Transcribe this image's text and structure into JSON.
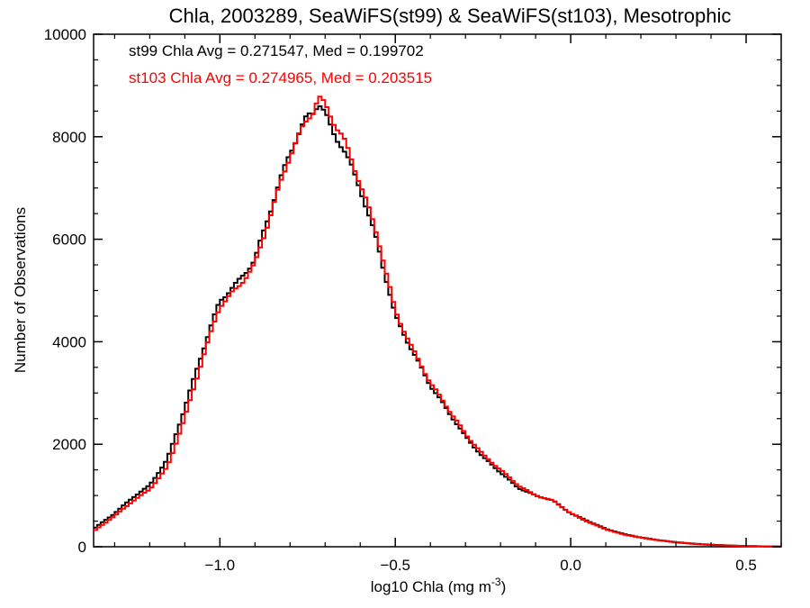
{
  "chart_data": {
    "type": "line",
    "title": "Chla, 2003289, SeaWiFS(st99) & SeaWiFS(st103), Mesotrophic",
    "xlabel": "log10 Chla (mg m",
    "xlabel_sup": "-3",
    "xlabel_tail": ")",
    "ylabel": "Number of Observations",
    "xlim": [
      -1.36,
      0.6
    ],
    "ylim": [
      0,
      10000
    ],
    "x_ticks": [
      -1.0,
      -0.5,
      0.0,
      0.5
    ],
    "x_tick_labels": [
      "−1.0",
      "−0.5",
      "0.0",
      "0.5"
    ],
    "y_ticks": [
      0,
      2000,
      4000,
      6000,
      8000,
      10000
    ],
    "y_tick_labels": [
      "0",
      "2000",
      "4000",
      "6000",
      "8000",
      "10000"
    ],
    "step": true,
    "grid": false,
    "annotations": [
      {
        "text": "st99 Chla Avg = 0.271547, Med = 0.199702",
        "color": "#000000"
      },
      {
        "text": "st103 Chla Avg = 0.274965, Med = 0.203515",
        "color": "#ff0000"
      }
    ],
    "series": [
      {
        "color": "#000000",
        "x": [
          -1.36,
          -1.3,
          -1.25,
          -1.2,
          -1.15,
          -1.1,
          -1.05,
          -1.0,
          -0.95,
          -0.9,
          -0.85,
          -0.8,
          -0.78,
          -0.75,
          -0.73,
          -0.72,
          -0.7,
          -0.68,
          -0.65,
          -0.6,
          -0.55,
          -0.5,
          -0.45,
          -0.4,
          -0.35,
          -0.3,
          -0.25,
          -0.2,
          -0.15,
          -0.1,
          -0.05,
          0.0,
          0.05,
          0.1,
          0.15,
          0.2,
          0.25,
          0.3,
          0.35,
          0.4,
          0.45,
          0.5,
          0.55,
          0.6
        ],
        "y": [
          350,
          650,
          950,
          1200,
          1700,
          2700,
          3800,
          4800,
          5150,
          5600,
          6700,
          7700,
          8000,
          8400,
          8500,
          8700,
          8450,
          8100,
          7800,
          7000,
          5900,
          4500,
          3800,
          3150,
          2650,
          2150,
          1750,
          1450,
          1150,
          1000,
          900,
          650,
          500,
          350,
          250,
          180,
          130,
          90,
          60,
          40,
          25,
          15,
          8,
          5
        ]
      },
      {
        "color": "#ff0000",
        "x": [
          -1.36,
          -1.3,
          -1.25,
          -1.2,
          -1.15,
          -1.1,
          -1.05,
          -1.0,
          -0.95,
          -0.9,
          -0.85,
          -0.8,
          -0.78,
          -0.75,
          -0.73,
          -0.72,
          -0.7,
          -0.68,
          -0.65,
          -0.6,
          -0.55,
          -0.5,
          -0.45,
          -0.4,
          -0.35,
          -0.3,
          -0.25,
          -0.2,
          -0.15,
          -0.1,
          -0.05,
          0.0,
          0.05,
          0.1,
          0.15,
          0.2,
          0.25,
          0.3,
          0.35,
          0.4,
          0.45,
          0.5,
          0.55,
          0.6
        ],
        "y": [
          300,
          600,
          880,
          1120,
          1550,
          2500,
          3650,
          4700,
          5050,
          5500,
          6600,
          7650,
          7950,
          8350,
          8550,
          8800,
          8600,
          8350,
          8000,
          7100,
          6050,
          4600,
          3850,
          3200,
          2700,
          2200,
          1800,
          1500,
          1200,
          1000,
          900,
          650,
          480,
          340,
          240,
          175,
          125,
          85,
          55,
          35,
          22,
          13,
          7,
          4
        ]
      }
    ]
  }
}
